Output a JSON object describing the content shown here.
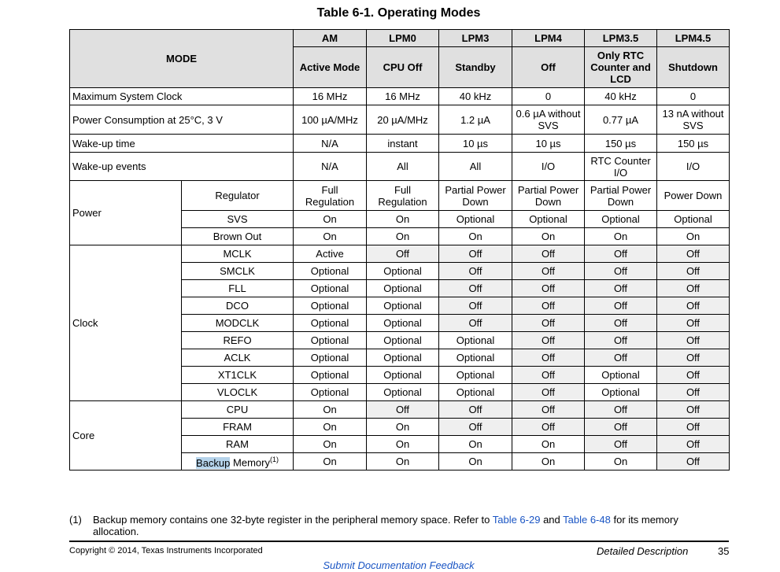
{
  "title": "Table 6-1. Operating Modes",
  "header": {
    "mode": "MODE",
    "modes": [
      "AM",
      "LPM0",
      "LPM3",
      "LPM4",
      "LPM3.5",
      "LPM4.5"
    ],
    "names": [
      "Active Mode",
      "CPU Off",
      "Standby",
      "Off",
      "Only RTC Counter and LCD",
      "Shutdown"
    ]
  },
  "rows": [
    {
      "label": "Maximum System Clock",
      "values": [
        "16 MHz",
        "16 MHz",
        "40 kHz",
        "0",
        "40 kHz",
        "0"
      ]
    },
    {
      "label": "Power Consumption at 25°C, 3 V",
      "values": [
        "100 µA/MHz",
        "20 µA/MHz",
        "1.2 µA",
        "0.6 µA without SVS",
        "0.77 µA",
        "13 nA without SVS"
      ]
    },
    {
      "label": "Wake-up time",
      "values": [
        "N/A",
        "instant",
        "10 µs",
        "10 µs",
        "150 µs",
        "150 µs"
      ]
    },
    {
      "label": "Wake-up events",
      "values": [
        "N/A",
        "All",
        "All",
        "I/O",
        "RTC Counter I/O",
        "I/O"
      ]
    }
  ],
  "groups": [
    {
      "label": "Power",
      "rows": [
        {
          "label": "Regulator",
          "values": [
            "Full Regulation",
            "Full Regulation",
            "Partial Power Down",
            "Partial Power Down",
            "Partial Power Down",
            "Power Down"
          ]
        },
        {
          "label": "SVS",
          "values": [
            "On",
            "On",
            "Optional",
            "Optional",
            "Optional",
            "Optional"
          ]
        },
        {
          "label": "Brown Out",
          "values": [
            "On",
            "On",
            "On",
            "On",
            "On",
            "On"
          ]
        }
      ]
    },
    {
      "label": "Clock",
      "rows": [
        {
          "label": "MCLK",
          "values": [
            "Active",
            "Off",
            "Off",
            "Off",
            "Off",
            "Off"
          ]
        },
        {
          "label": "SMCLK",
          "values": [
            "Optional",
            "Optional",
            "Off",
            "Off",
            "Off",
            "Off"
          ]
        },
        {
          "label": "FLL",
          "values": [
            "Optional",
            "Optional",
            "Off",
            "Off",
            "Off",
            "Off"
          ]
        },
        {
          "label": "DCO",
          "values": [
            "Optional",
            "Optional",
            "Off",
            "Off",
            "Off",
            "Off"
          ]
        },
        {
          "label": "MODCLK",
          "values": [
            "Optional",
            "Optional",
            "Off",
            "Off",
            "Off",
            "Off"
          ]
        },
        {
          "label": "REFO",
          "values": [
            "Optional",
            "Optional",
            "Optional",
            "Off",
            "Off",
            "Off"
          ]
        },
        {
          "label": "ACLK",
          "values": [
            "Optional",
            "Optional",
            "Optional",
            "Off",
            "Off",
            "Off"
          ]
        },
        {
          "label": "XT1CLK",
          "values": [
            "Optional",
            "Optional",
            "Optional",
            "Off",
            "Optional",
            "Off"
          ]
        },
        {
          "label": "VLOCLK",
          "values": [
            "Optional",
            "Optional",
            "Optional",
            "Off",
            "Optional",
            "Off"
          ]
        }
      ]
    },
    {
      "label": "Core",
      "rows": [
        {
          "label": "CPU",
          "values": [
            "On",
            "Off",
            "Off",
            "Off",
            "Off",
            "Off"
          ]
        },
        {
          "label": "FRAM",
          "values": [
            "On",
            "On",
            "Off",
            "Off",
            "Off",
            "Off"
          ]
        },
        {
          "label": "RAM",
          "values": [
            "On",
            "On",
            "On",
            "On",
            "Off",
            "Off"
          ]
        },
        {
          "label_hl": "Backup",
          "label": " Memory",
          "sup": "(1)",
          "values": [
            "On",
            "On",
            "On",
            "On",
            "On",
            "Off"
          ]
        }
      ]
    }
  ],
  "footnote": {
    "num": "(1)",
    "text1": "Backup memory contains one 32-byte register in the peripheral memory space. Refer to ",
    "link1": "Table 6-29",
    "text2": " and ",
    "link2": "Table 6-48",
    "text3": " for its memory allocation."
  },
  "footer": {
    "copyright": "Copyright © 2014, Texas Instruments Incorporated",
    "section": "Detailed Description",
    "page": "35",
    "feedback": "Submit Documentation Feedback"
  }
}
